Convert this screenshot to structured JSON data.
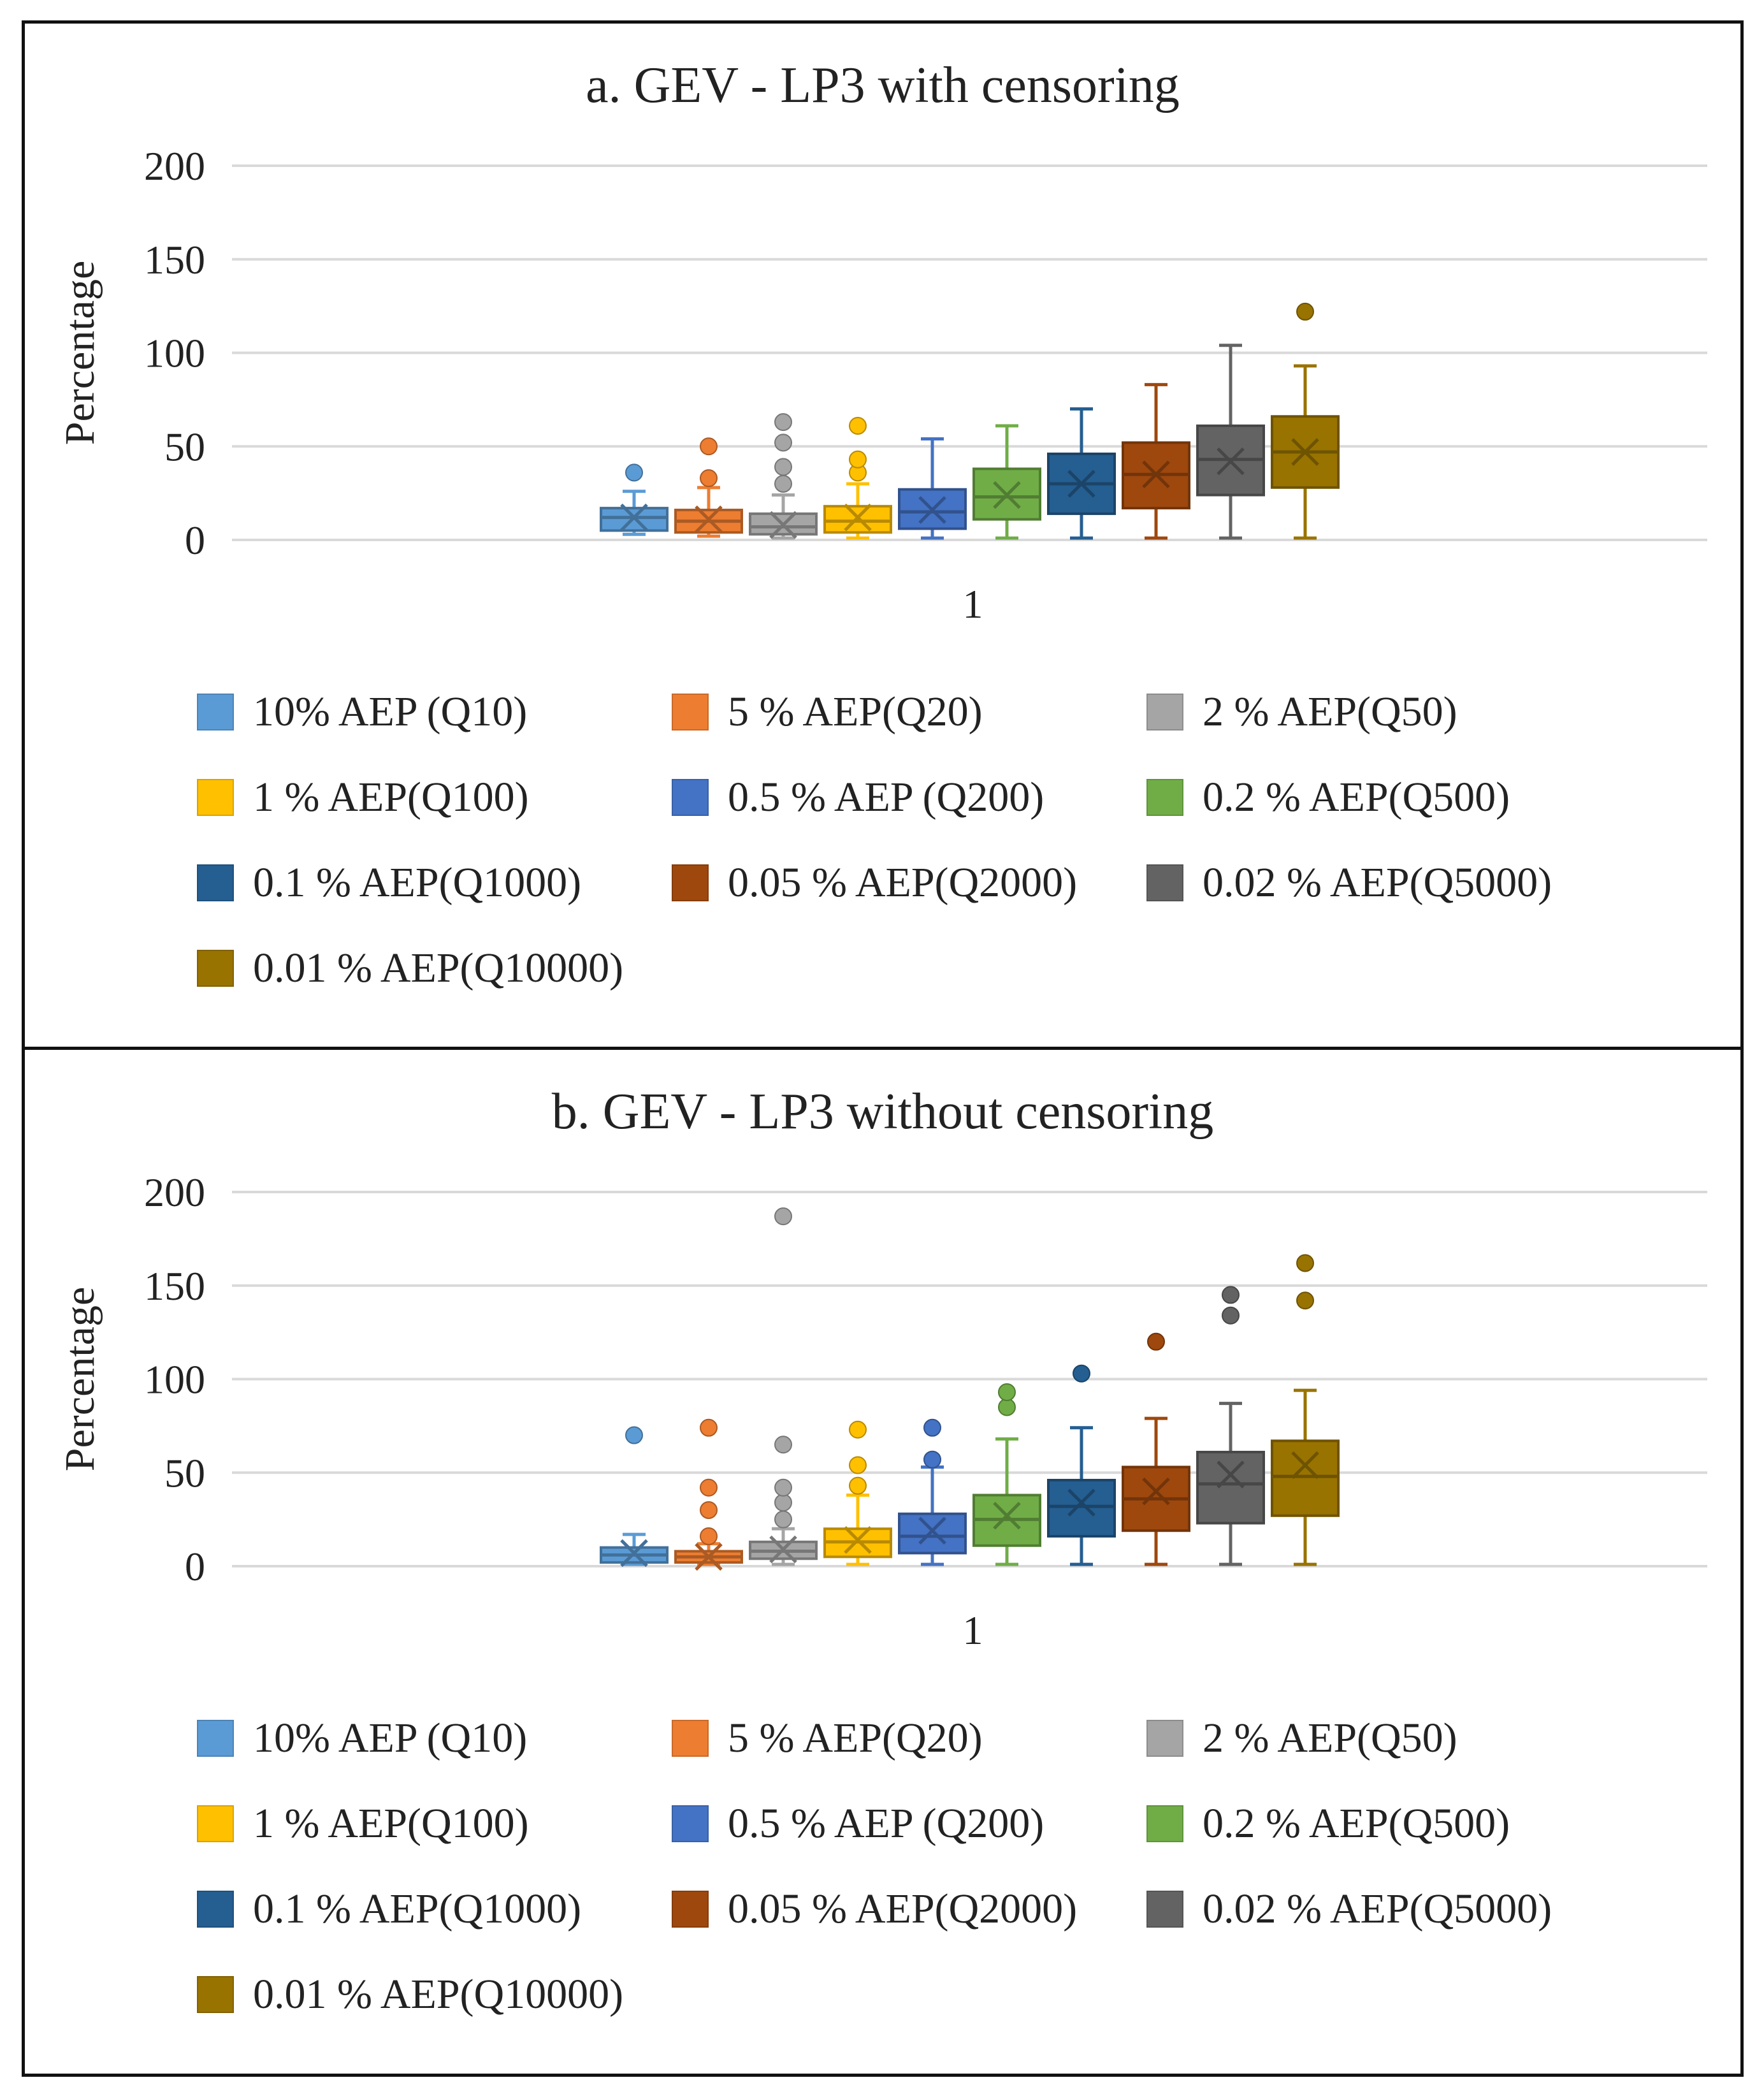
{
  "chart_data": [
    {
      "type": "box",
      "title": "a. GEV - LP3 with censoring",
      "ylabel": "Percentage",
      "xlabel": "",
      "ylim": [
        0,
        200
      ],
      "yticks": [
        0,
        50,
        100,
        150,
        200
      ],
      "categories": [
        "1"
      ],
      "grid": true,
      "legend_position": "bottom",
      "series": [
        {
          "name": "10% AEP (Q10)",
          "color": "#5B9BD5",
          "min": 3,
          "q1": 5,
          "median": 12,
          "q3": 17,
          "max": 26,
          "mean": 12,
          "outliers": [
            36
          ]
        },
        {
          "name": "5 % AEP(Q20)",
          "color": "#ED7D31",
          "min": 2,
          "q1": 4,
          "median": 10,
          "q3": 16,
          "max": 28,
          "mean": 11,
          "outliers": [
            33,
            50
          ]
        },
        {
          "name": "2 % AEP(Q50)",
          "color": "#A5A5A5",
          "min": 1,
          "q1": 3,
          "median": 7,
          "q3": 14,
          "max": 24,
          "mean": 8,
          "outliers": [
            30,
            39,
            52,
            63
          ]
        },
        {
          "name": "1 % AEP(Q100)",
          "color": "#FFC000",
          "min": 1,
          "q1": 4,
          "median": 10,
          "q3": 18,
          "max": 30,
          "mean": 12,
          "outliers": [
            36,
            43,
            61
          ]
        },
        {
          "name": "0.5 % AEP (Q200)",
          "color": "#4472C4",
          "min": 1,
          "q1": 6,
          "median": 15,
          "q3": 27,
          "max": 54,
          "mean": 16,
          "outliers": []
        },
        {
          "name": "0.2 % AEP(Q500)",
          "color": "#70AD47",
          "min": 1,
          "q1": 11,
          "median": 23,
          "q3": 38,
          "max": 61,
          "mean": 24,
          "outliers": []
        },
        {
          "name": "0.1 % AEP(Q1000)",
          "color": "#255E91",
          "min": 1,
          "q1": 14,
          "median": 30,
          "q3": 46,
          "max": 70,
          "mean": 30,
          "outliers": []
        },
        {
          "name": "0.05 % AEP(Q2000)",
          "color": "#9E480E",
          "min": 1,
          "q1": 17,
          "median": 35,
          "q3": 52,
          "max": 83,
          "mean": 35,
          "outliers": []
        },
        {
          "name": "0.02 % AEP(Q5000)",
          "color": "#636363",
          "min": 1,
          "q1": 24,
          "median": 43,
          "q3": 61,
          "max": 104,
          "mean": 42,
          "outliers": []
        },
        {
          "name": "0.01 % AEP(Q10000)",
          "color": "#997300",
          "min": 1,
          "q1": 28,
          "median": 47,
          "q3": 66,
          "max": 93,
          "mean": 47,
          "outliers": [
            122
          ]
        }
      ]
    },
    {
      "type": "box",
      "title": "b. GEV - LP3 without censoring",
      "ylabel": "Percentage",
      "xlabel": "",
      "ylim": [
        0,
        200
      ],
      "yticks": [
        0,
        50,
        100,
        150,
        200
      ],
      "categories": [
        "1"
      ],
      "grid": true,
      "legend_position": "bottom",
      "series": [
        {
          "name": "10% AEP (Q10)",
          "color": "#5B9BD5",
          "min": 1,
          "q1": 2,
          "median": 6,
          "q3": 10,
          "max": 17,
          "mean": 7,
          "outliers": [
            70
          ]
        },
        {
          "name": "5 % AEP(Q20)",
          "color": "#ED7D31",
          "min": 1,
          "q1": 2,
          "median": 5,
          "q3": 8,
          "max": 12,
          "mean": 5,
          "outliers": [
            16,
            30,
            42,
            74
          ]
        },
        {
          "name": "2 % AEP(Q50)",
          "color": "#A5A5A5",
          "min": 1,
          "q1": 4,
          "median": 8,
          "q3": 13,
          "max": 20,
          "mean": 9,
          "outliers": [
            25,
            34,
            42,
            65,
            187
          ]
        },
        {
          "name": "1 % AEP(Q100)",
          "color": "#FFC000",
          "min": 1,
          "q1": 5,
          "median": 13,
          "q3": 20,
          "max": 38,
          "mean": 14,
          "outliers": [
            43,
            54,
            73
          ]
        },
        {
          "name": "0.5 % AEP (Q200)",
          "color": "#4472C4",
          "min": 1,
          "q1": 7,
          "median": 16,
          "q3": 28,
          "max": 53,
          "mean": 19,
          "outliers": [
            57,
            74
          ]
        },
        {
          "name": "0.2 % AEP(Q500)",
          "color": "#70AD47",
          "min": 1,
          "q1": 11,
          "median": 25,
          "q3": 38,
          "max": 68,
          "mean": 27,
          "outliers": [
            85,
            93
          ]
        },
        {
          "name": "0.1 % AEP(Q1000)",
          "color": "#255E91",
          "min": 1,
          "q1": 16,
          "median": 32,
          "q3": 46,
          "max": 74,
          "mean": 34,
          "outliers": [
            103
          ]
        },
        {
          "name": "0.05 % AEP(Q2000)",
          "color": "#9E480E",
          "min": 1,
          "q1": 19,
          "median": 36,
          "q3": 53,
          "max": 79,
          "mean": 40,
          "outliers": [
            120
          ]
        },
        {
          "name": "0.02 % AEP(Q5000)",
          "color": "#636363",
          "min": 1,
          "q1": 23,
          "median": 44,
          "q3": 61,
          "max": 87,
          "mean": 49,
          "outliers": [
            134,
            145
          ]
        },
        {
          "name": "0.01 % AEP(Q10000)",
          "color": "#997300",
          "min": 1,
          "q1": 27,
          "median": 48,
          "q3": 67,
          "max": 94,
          "mean": 54,
          "outliers": [
            142,
            162
          ]
        }
      ]
    }
  ]
}
